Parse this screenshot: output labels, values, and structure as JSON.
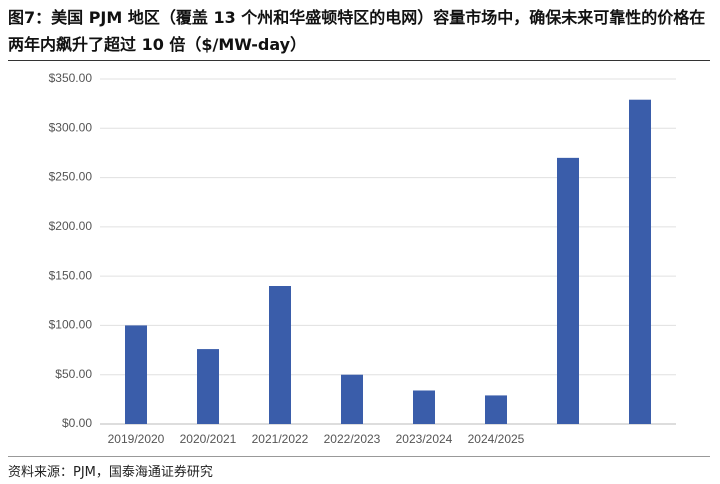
{
  "chart_data": {
    "type": "bar",
    "title": "图7：美国 PJM 地区（覆盖 13 个州和华盛顿特区的电网）容量市场中，确保未来可靠性的价格在两年内飙升了超过 10 倍（$/MW-day）",
    "source": "资料来源：PJM，国泰海通证券研究",
    "categories": [
      "2019/2020",
      "2020/2021",
      "2021/2022",
      "2022/2023",
      "2023/2024",
      "2024/2025",
      null,
      null
    ],
    "values": [
      100,
      76,
      140,
      50,
      34,
      29,
      270,
      329
    ],
    "color": "#3a5daa",
    "ylim": [
      0,
      350
    ],
    "yticks": [
      {
        "value": 0,
        "label": "$0.00"
      },
      {
        "value": 50,
        "label": "$50.00"
      },
      {
        "value": 100,
        "label": "$100.00"
      },
      {
        "value": 150,
        "label": "$150.00"
      },
      {
        "value": 200,
        "label": "$200.00"
      },
      {
        "value": 250,
        "label": "$250.00"
      },
      {
        "value": 300,
        "label": "$300.00"
      },
      {
        "value": 350,
        "label": "$350.00"
      }
    ],
    "grid": true
  }
}
